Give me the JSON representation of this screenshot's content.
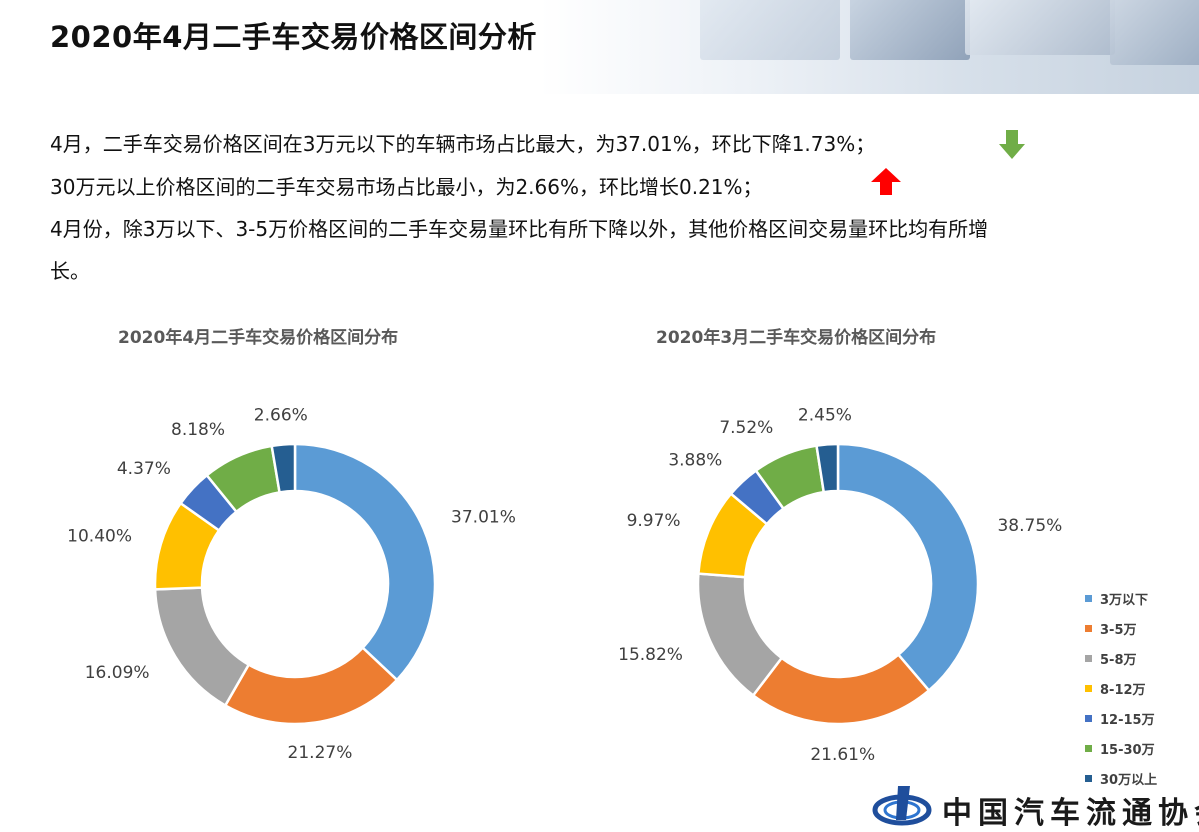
{
  "page": {
    "title": "2020年4月二手车交易价格区间分析",
    "paragraphs": [
      "4月，二手车交易价格区间在3万元以下的车辆市场占比最大，为37.01%，环比下降1.73%；",
      "30万元以上价格区间的二手车交易市场占比最小，为2.66%，环比增长0.21%；",
      "4月份，除3万以下、3-5万价格区间的二手车交易量环比有所下降以外，其他价格区间交易量环比均有所增",
      "长。"
    ],
    "indicators": [
      {
        "icon": "down-arrow-icon",
        "color": "#70ad47"
      },
      {
        "icon": "up-arrow-icon",
        "color": "#ff0000"
      }
    ]
  },
  "legend": {
    "items": [
      "3万以下",
      "3-5万",
      "5-8万",
      "8-12万",
      "12-15万",
      "15-30万",
      "30万以上"
    ]
  },
  "colors": [
    "#5b9bd5",
    "#ed7d31",
    "#a5a5a5",
    "#ffc000",
    "#4472c4",
    "#70ad47",
    "#255e91"
  ],
  "chart_data": [
    {
      "type": "pie",
      "title": "2020年4月二手车交易价格区间分布",
      "categories": [
        "3万以下",
        "3-5万",
        "5-8万",
        "8-12万",
        "12-15万",
        "15-30万",
        "30万以上"
      ],
      "values": [
        37.01,
        21.27,
        16.09,
        10.4,
        4.37,
        8.18,
        2.66
      ],
      "labels": [
        "37.01%",
        "21.27%",
        "16.09%",
        "10.40%",
        "4.37%",
        "8.18%",
        "2.66%"
      ],
      "legend": "right"
    },
    {
      "type": "pie",
      "title": "2020年3月二手车交易价格区间分布",
      "categories": [
        "3万以下",
        "3-5万",
        "5-8万",
        "8-12万",
        "12-15万",
        "15-30万",
        "30万以上"
      ],
      "values": [
        38.75,
        21.61,
        15.82,
        9.97,
        3.88,
        7.52,
        2.45
      ],
      "labels": [
        "38.75%",
        "21.61%",
        "15.82%",
        "9.97%",
        "3.88%",
        "7.52%",
        "2.45%"
      ],
      "legend": "right"
    }
  ],
  "footer": {
    "logo_text": "中国汽车流通协会"
  }
}
